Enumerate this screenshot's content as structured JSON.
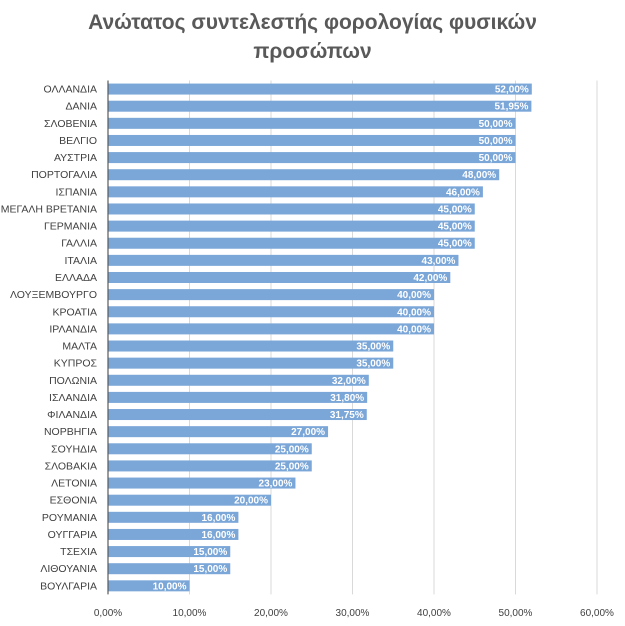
{
  "chart_data": {
    "type": "bar",
    "orientation": "horizontal",
    "title_lines": [
      "Ανώτατος συντελεστής φορολογίας φυσικών",
      "προσώπων"
    ],
    "categories": [
      "ΟΛΛΑΝΔΙΑ",
      "ΔΑΝΙΑ",
      "ΣΛΟΒΕΝΙΑ",
      "ΒΕΛΓΙΟ",
      "ΑΥΣΤΡΙΑ",
      "ΠΟΡΤΟΓΑΛΙΑ",
      "ΙΣΠΑΝΙΑ",
      "ΜΕΓΑΛΗ ΒΡΕΤΑΝΙΑ",
      "ΓΕΡΜΑΝΙΑ",
      "ΓΑΛΛΙΑ",
      "ΙΤΑΛΙΑ",
      "ΕΛΛΑΔΑ",
      "ΛΟΥΞΕΜΒΟΥΡΓΟ",
      "ΚΡΟΑΤΙΑ",
      "ΙΡΛΑΝΔΙΑ",
      "ΜΑΛΤΑ",
      "ΚΥΠΡΟΣ",
      "ΠΟΛΩΝΙΑ",
      "ΙΣΛΑΝΔΙΑ",
      "ΦΙΛΑΝΔΙΑ",
      "ΝΟΡΒΗΓΙΑ",
      "ΣΟΥΗΔΙΑ",
      "ΣΛΟΒΑΚΙΑ",
      "ΛΕΤΟΝΙΑ",
      "ΕΣΘΟΝΙΑ",
      "ΡΟΥΜΑΝΙΑ",
      "ΟΥΓΓΑΡΙΑ",
      "ΤΣΕΧΙΑ",
      "ΛΙΘΟΥΑΝΙΑ",
      "ΒΟΥΛΓΑΡΙΑ"
    ],
    "values": [
      52.0,
      51.95,
      50.0,
      50.0,
      50.0,
      48.0,
      46.0,
      45.0,
      45.0,
      45.0,
      43.0,
      42.0,
      40.0,
      40.0,
      40.0,
      35.0,
      35.0,
      32.0,
      31.8,
      31.75,
      27.0,
      25.0,
      25.0,
      23.0,
      20.0,
      16.0,
      16.0,
      15.0,
      15.0,
      10.0
    ],
    "data_labels": [
      "52,00%",
      "51,95%",
      "50,00%",
      "50,00%",
      "50,00%",
      "48,00%",
      "46,00%",
      "45,00%",
      "45,00%",
      "45,00%",
      "43,00%",
      "42,00%",
      "40,00%",
      "40,00%",
      "40,00%",
      "35,00%",
      "35,00%",
      "32,00%",
      "31,80%",
      "31,75%",
      "27,00%",
      "25,00%",
      "25,00%",
      "23,00%",
      "20,00%",
      "16,00%",
      "16,00%",
      "15,00%",
      "15,00%",
      "10,00%"
    ],
    "x_ticks": [
      0,
      10,
      20,
      30,
      40,
      50,
      60
    ],
    "x_tick_labels": [
      "0,00%",
      "10,00%",
      "20,00%",
      "30,00%",
      "40,00%",
      "50,00%",
      "60,00%"
    ],
    "xlim": [
      0,
      60
    ],
    "grid": true,
    "legend": "none",
    "colors": {
      "bar": "#7aa6d8",
      "grid": "#d9d9d9",
      "axis": "#595959"
    }
  }
}
